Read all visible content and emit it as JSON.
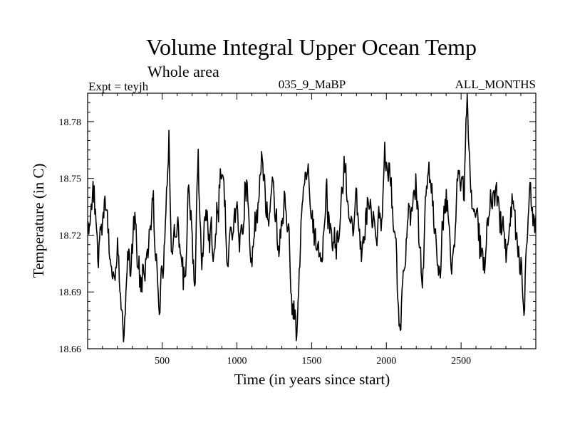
{
  "chart_data": {
    "type": "line",
    "title": "Volume Integral Upper Ocean Temp",
    "subtitle": "Whole area",
    "meta": {
      "left": "Expt = teyjh",
      "center": "035_9_MaBP",
      "right": "ALL_MONTHS"
    },
    "xlabel": "Time (in years since start)",
    "ylabel": "Temperature (in C)",
    "xlim": [
      1,
      3000
    ],
    "ylim": [
      18.66,
      18.795
    ],
    "xticks": [
      500,
      1000,
      1500,
      2000,
      2500
    ],
    "xtick_labels": [
      "500",
      "1000",
      "1500",
      "2000",
      "2500"
    ],
    "yticks": [
      18.66,
      18.69,
      18.72,
      18.75,
      18.78
    ],
    "ytick_labels": [
      "18.66",
      "18.69",
      "18.72",
      "18.75",
      "18.78"
    ],
    "series": [
      {
        "name": "temperature",
        "color": "#000000",
        "x": [
          1,
          40,
          80,
          120,
          160,
          200,
          240,
          280,
          320,
          360,
          400,
          440,
          480,
          520,
          545,
          560,
          600,
          640,
          680,
          720,
          740,
          760,
          800,
          840,
          880,
          910,
          940,
          980,
          1020,
          1060,
          1100,
          1140,
          1170,
          1200,
          1240,
          1280,
          1320,
          1360,
          1400,
          1440,
          1480,
          1520,
          1560,
          1600,
          1640,
          1680,
          1720,
          1760,
          1800,
          1840,
          1880,
          1920,
          1960,
          1990,
          2020,
          2060,
          2090,
          2120,
          2160,
          2200,
          2240,
          2280,
          2320,
          2360,
          2400,
          2440,
          2480,
          2520,
          2540,
          2560,
          2600,
          2640,
          2680,
          2720,
          2760,
          2800,
          2840,
          2880,
          2920,
          2960,
          3000
        ],
        "values": [
          18.728,
          18.745,
          18.71,
          18.735,
          18.695,
          18.715,
          18.668,
          18.705,
          18.725,
          18.69,
          18.712,
          18.735,
          18.682,
          18.718,
          18.77,
          18.71,
          18.73,
          18.695,
          18.74,
          18.688,
          18.76,
          18.705,
          18.728,
          18.712,
          18.742,
          18.765,
          18.7,
          18.735,
          18.715,
          18.748,
          18.705,
          18.738,
          18.76,
          18.73,
          18.748,
          18.712,
          18.738,
          18.7,
          18.666,
          18.74,
          18.755,
          18.72,
          18.7,
          18.74,
          18.708,
          18.725,
          18.76,
          18.718,
          18.74,
          18.71,
          18.742,
          18.73,
          18.72,
          18.768,
          18.755,
          18.715,
          18.67,
          18.705,
          18.73,
          18.745,
          18.7,
          18.76,
          18.72,
          18.71,
          18.742,
          18.7,
          18.76,
          18.74,
          18.795,
          18.745,
          18.73,
          18.705,
          18.72,
          18.742,
          18.73,
          18.71,
          18.745,
          18.72,
          18.685,
          18.74,
          18.725
        ]
      }
    ]
  }
}
